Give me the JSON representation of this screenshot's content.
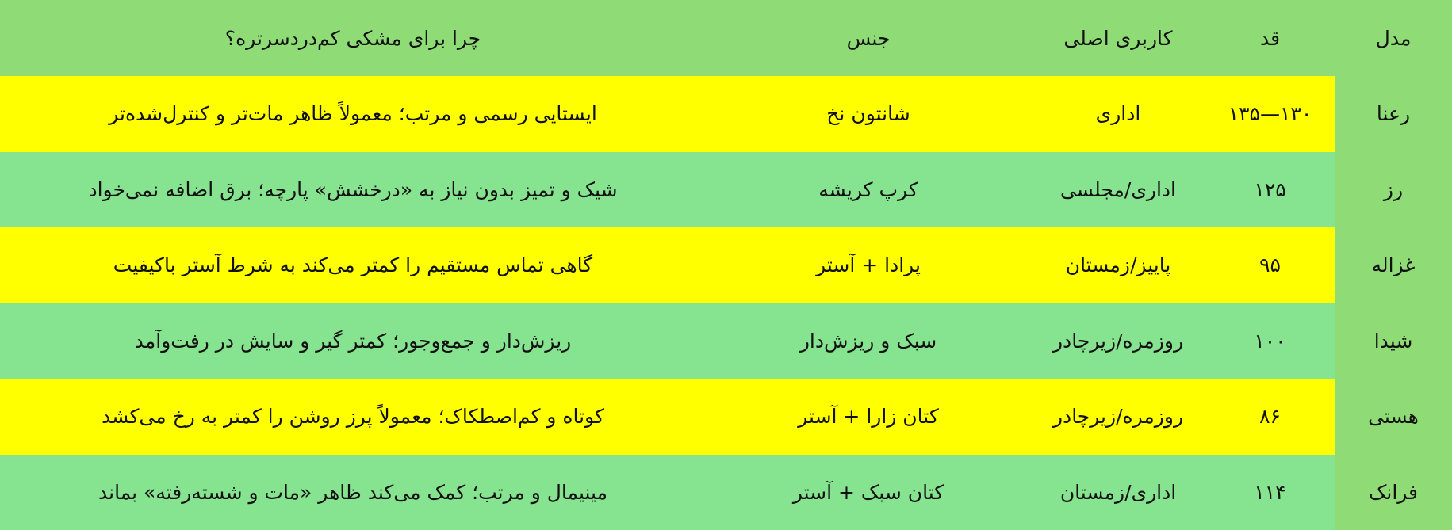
{
  "table": {
    "headers": [
      "مدل",
      "قد",
      "کاربری اصلی",
      "جنس",
      "چرا برای مشکی کم‌دردسرتره؟"
    ],
    "rows": [
      {
        "model": "رعنا",
        "height": "۱۳۰—۱۳۵",
        "usage": "اداری",
        "fabric": "شانتون نخ",
        "reason": "ایستایی رسمی و مرتب؛ معمولاً ظاهر مات‌تر و کنترل‌شده‌تر",
        "highlight": true
      },
      {
        "model": "رز",
        "height": "۱۲۵",
        "usage": "اداری/مجلسی",
        "fabric": "کرپ کریشه",
        "reason": "شیک و تمیز بدون نیاز به «درخشش» پارچه؛ برق اضافه نمی‌خواد",
        "highlight": false
      },
      {
        "model": "غزاله",
        "height": "۹۵",
        "usage": "پاییز/زمستان",
        "fabric": "پرادا + آستر",
        "reason": "گاهی تماس مستقیم را کمتر می‌کند به شرط آستر باکیفیت",
        "highlight": true
      },
      {
        "model": "شیدا",
        "height": "۱۰۰",
        "usage": "روزمره/زیرچادر",
        "fabric": "سبک و ریزش‌دار",
        "reason": "ریزش‌دار و جمع‌وجور؛ کمتر گیر و سایش در رفت‌وآمد",
        "highlight": false
      },
      {
        "model": "هستی",
        "height": "۸۶",
        "usage": "روزمره/زیرچادر",
        "fabric": "کتان زارا + آستر",
        "reason": "کوتاه و کم‌اصطکاک؛ معمولاً پرز روشن را کمتر به رخ می‌کشد",
        "highlight": true
      },
      {
        "model": "فرانک",
        "height": "۱۱۴",
        "usage": "اداری/زمستان",
        "fabric": "کتان سبک + آستر",
        "reason": "مینیمال و مرتب؛ کمک می‌کند ظاهر «مات و شسته‌رفته» بماند",
        "highlight": false
      }
    ]
  },
  "colors": {
    "header": "#8fdc77",
    "row": "#86e38f",
    "highlight": "#ffff00"
  }
}
